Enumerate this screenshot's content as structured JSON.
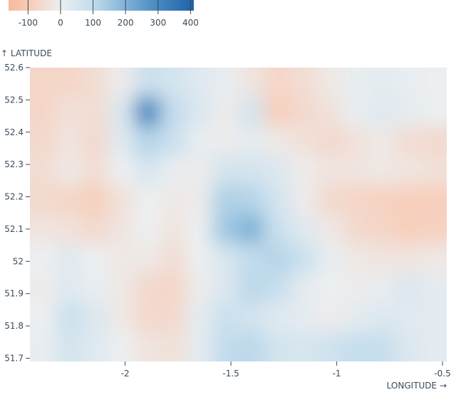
{
  "chart_data": {
    "type": "heatmap",
    "xlabel": "LONGITUDE →",
    "ylabel": "↑ LATITUDE",
    "xlim": [
      -2.45,
      -0.48
    ],
    "ylim": [
      51.69,
      52.6
    ],
    "x_ticks": [
      "-2",
      "-1.5",
      "-1",
      "-0.5"
    ],
    "x_tick_values": [
      -2,
      -1.5,
      -1,
      -0.5
    ],
    "y_ticks": [
      "52.6",
      "52.5",
      "52.4",
      "52.3",
      "52.2",
      "52.1",
      "52",
      "51.9",
      "51.8",
      "51.7"
    ],
    "y_tick_values": [
      52.6,
      52.5,
      52.4,
      52.3,
      52.2,
      52.1,
      52.0,
      51.9,
      51.8,
      51.7
    ],
    "legend": {
      "placement": "top-left",
      "domain": [
        -160,
        410
      ],
      "ticks": [
        "-100",
        "0",
        "100",
        "200",
        "300",
        "400"
      ],
      "tick_values": [
        -100,
        0,
        100,
        200,
        300,
        400
      ],
      "color_stops": [
        {
          "value": -160,
          "color": "#f6b99c"
        },
        {
          "value": -100,
          "color": "#f8cbb5"
        },
        {
          "value": 0,
          "color": "#eceff1"
        },
        {
          "value": 100,
          "color": "#c2dcec"
        },
        {
          "value": 200,
          "color": "#7fb3d7"
        },
        {
          "value": 300,
          "color": "#4788c0"
        },
        {
          "value": 410,
          "color": "#1f63a8"
        }
      ]
    },
    "grid": false,
    "lon": [
      -2.39,
      -2.27,
      -2.14,
      -2.02,
      -1.9,
      -1.78,
      -1.65,
      -1.53,
      -1.41,
      -1.29,
      -1.16,
      -1.04,
      -0.92,
      -0.79,
      -0.67,
      -0.55
    ],
    "lat": [
      52.555,
      52.465,
      52.375,
      52.285,
      52.195,
      52.105,
      52.015,
      51.925,
      51.835,
      51.745
    ],
    "values": [
      [
        -70,
        -70,
        -50,
        -10,
        80,
        60,
        30,
        10,
        -30,
        -70,
        -50,
        -20,
        10,
        20,
        10,
        0
      ],
      [
        -70,
        -40,
        -50,
        40,
        300,
        100,
        40,
        -10,
        60,
        -90,
        -60,
        -40,
        10,
        30,
        20,
        0
      ],
      [
        -60,
        -30,
        -60,
        30,
        120,
        80,
        10,
        -10,
        20,
        -20,
        -40,
        -60,
        -40,
        -20,
        -50,
        -60
      ],
      [
        -50,
        -20,
        -50,
        0,
        50,
        10,
        -10,
        60,
        60,
        40,
        -10,
        -30,
        -30,
        -20,
        -30,
        -40
      ],
      [
        -60,
        -70,
        -90,
        -40,
        0,
        -20,
        -10,
        130,
        120,
        60,
        -10,
        -60,
        -70,
        -80,
        -90,
        -90
      ],
      [
        -30,
        -40,
        -60,
        -30,
        0,
        -30,
        0,
        150,
        200,
        80,
        30,
        -20,
        -60,
        -70,
        -90,
        -80
      ],
      [
        0,
        30,
        0,
        -20,
        -20,
        -50,
        0,
        50,
        100,
        120,
        80,
        10,
        -20,
        -30,
        -30,
        -20
      ],
      [
        -10,
        30,
        10,
        -20,
        -60,
        -70,
        -10,
        40,
        110,
        90,
        20,
        0,
        -10,
        10,
        40,
        20
      ],
      [
        0,
        80,
        40,
        -20,
        -60,
        -60,
        20,
        80,
        60,
        30,
        20,
        -10,
        20,
        40,
        30,
        20
      ],
      [
        10,
        60,
        30,
        0,
        -30,
        -40,
        20,
        100,
        110,
        60,
        50,
        70,
        90,
        90,
        40,
        20
      ]
    ]
  }
}
